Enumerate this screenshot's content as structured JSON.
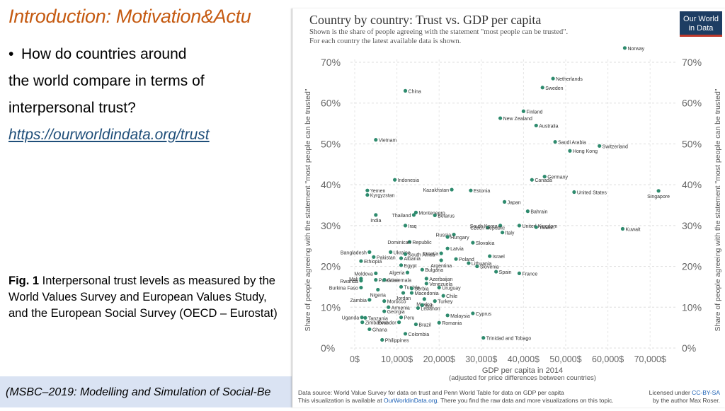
{
  "slide": {
    "title": "Introduction: Motivation&Actu",
    "bullet_line1": "How do countries around",
    "bullet_line2": "the world compare in terms of",
    "bullet_line3": "interpersonal trust?",
    "link": "https://ourworldindata.org/trust",
    "caption_label": "Fig. 1",
    "caption_text": " Interpersonal trust levels as measured by the World Values Survey and European Values Study, and the European Social Survey (OECD – Eurostat)",
    "footer": "(MSBC–2019: Modelling and Simulation of Social-Be"
  },
  "chart_data": {
    "type": "scatter",
    "title": "Country by country: Trust vs. GDP per capita",
    "subtitle_line1": "Shown is the share of people agreeing with the statement \"most people can be trusted\".",
    "subtitle_line2": "For each country the latest available data is shown.",
    "logo_line1": "Our World",
    "logo_line2": "in Data",
    "ylabel": "Share of people agreeing with the statement \"most people can be trusted\"",
    "xlabel": "GDP per capita in 2014",
    "xlabel_sub": "(adjusted for price differences between countries)",
    "xlim": [
      0,
      75000
    ],
    "ylim": [
      0,
      70
    ],
    "x_ticks": [
      "0$",
      "10,000$",
      "20,000$",
      "30,000$",
      "40,000$",
      "50,000$",
      "60,000$",
      "70,000$"
    ],
    "y_ticks": [
      "0%",
      "10%",
      "20%",
      "30%",
      "40%",
      "50%",
      "60%",
      "70%"
    ],
    "source_line1": "Data source: World Value Survey for data on trust and Penn World Table for data on GDP per capita",
    "source_line2_pre": "This visualization is available at ",
    "source_line2_link": "OurWorldinData.org",
    "source_line2_post": ". There you find the raw data and more visualizations on this topic.",
    "license_line1_pre": "Licensed under ",
    "license_line1_link": "CC-BY-SA",
    "license_line2": "by the author Max Roser.",
    "point_color": "#2e8b6e",
    "points": [
      {
        "label": "Norway",
        "x": 64000,
        "y": 73.5,
        "anchor": "start"
      },
      {
        "label": "Netherlands",
        "x": 47000,
        "y": 66,
        "anchor": "start"
      },
      {
        "label": "Sweden",
        "x": 44500,
        "y": 63.8,
        "anchor": "start"
      },
      {
        "label": "China",
        "x": 12000,
        "y": 63,
        "anchor": "start"
      },
      {
        "label": "Finland",
        "x": 40000,
        "y": 58,
        "anchor": "start"
      },
      {
        "label": "New Zealand",
        "x": 34500,
        "y": 56.3,
        "anchor": "start"
      },
      {
        "label": "Australia",
        "x": 43000,
        "y": 54.5,
        "anchor": "start"
      },
      {
        "label": "Vietnam",
        "x": 5000,
        "y": 51,
        "anchor": "start"
      },
      {
        "label": "Saudi Arabia",
        "x": 47500,
        "y": 50.5,
        "anchor": "start"
      },
      {
        "label": "Switzerland",
        "x": 58000,
        "y": 49.5,
        "anchor": "start"
      },
      {
        "label": "Hong Kong",
        "x": 51000,
        "y": 48.3,
        "anchor": "start"
      },
      {
        "label": "Germany",
        "x": 45000,
        "y": 42,
        "anchor": "start"
      },
      {
        "label": "Canada",
        "x": 42000,
        "y": 41.2,
        "anchor": "start"
      },
      {
        "label": "Indonesia",
        "x": 9500,
        "y": 41.2,
        "anchor": "start"
      },
      {
        "label": "Kazakhstan",
        "x": 23000,
        "y": 38.8,
        "anchor": "end"
      },
      {
        "label": "Estonia",
        "x": 27500,
        "y": 38.6,
        "anchor": "start"
      },
      {
        "label": "United States",
        "x": 52000,
        "y": 38.2,
        "anchor": "start"
      },
      {
        "label": "Singapore",
        "x": 72000,
        "y": 38.5,
        "anchor": "middle",
        "dy": 10
      },
      {
        "label": "Yemen",
        "x": 3000,
        "y": 38.6,
        "anchor": "start"
      },
      {
        "label": "Kyrgyzstan",
        "x": 3000,
        "y": 37.5,
        "anchor": "start"
      },
      {
        "label": "Japan",
        "x": 35500,
        "y": 35.8,
        "anchor": "start"
      },
      {
        "label": "Bahrain",
        "x": 41000,
        "y": 33.5,
        "anchor": "start"
      },
      {
        "label": "Montenegro",
        "x": 14500,
        "y": 33.2,
        "anchor": "start"
      },
      {
        "label": "Thailand",
        "x": 14000,
        "y": 32.6,
        "anchor": "end"
      },
      {
        "label": "Belarus",
        "x": 19000,
        "y": 32.5,
        "anchor": "start"
      },
      {
        "label": "India",
        "x": 5000,
        "y": 32.6,
        "anchor": "middle",
        "dy": 10
      },
      {
        "label": "South Korea",
        "x": 34500,
        "y": 30,
        "anchor": "end"
      },
      {
        "label": "Iraq",
        "x": 12000,
        "y": 30,
        "anchor": "start"
      },
      {
        "label": "Czech Republic",
        "x": 31500,
        "y": 29.5,
        "anchor": "middle"
      },
      {
        "label": "United Kingdom",
        "x": 39000,
        "y": 30,
        "anchor": "start"
      },
      {
        "label": "Taiwan",
        "x": 43000,
        "y": 29.6,
        "anchor": "start"
      },
      {
        "label": "Kuwait",
        "x": 63500,
        "y": 29.2,
        "anchor": "start"
      },
      {
        "label": "Italy",
        "x": 35000,
        "y": 28.3,
        "anchor": "start"
      },
      {
        "label": "Russia",
        "x": 23500,
        "y": 27.8,
        "anchor": "end"
      },
      {
        "label": "Hungary",
        "x": 22000,
        "y": 27.2,
        "anchor": "start"
      },
      {
        "label": "Dominican Republic",
        "x": 13000,
        "y": 26,
        "anchor": "middle"
      },
      {
        "label": "Slovakia",
        "x": 28000,
        "y": 25.8,
        "anchor": "start"
      },
      {
        "label": "Latvia",
        "x": 22000,
        "y": 24.4,
        "anchor": "start"
      },
      {
        "label": "Ukraine",
        "x": 8500,
        "y": 23.5,
        "anchor": "start"
      },
      {
        "label": "Bangladesh",
        "x": 3500,
        "y": 23.5,
        "anchor": "end"
      },
      {
        "label": "South Africa",
        "x": 12000,
        "y": 23,
        "anchor": "start"
      },
      {
        "label": "Croatia",
        "x": 20500,
        "y": 23.2,
        "anchor": "end"
      },
      {
        "label": "Israel",
        "x": 32000,
        "y": 22.5,
        "anchor": "start"
      },
      {
        "label": "Pakistan",
        "x": 4500,
        "y": 22.3,
        "anchor": "start"
      },
      {
        "label": "Albania",
        "x": 11000,
        "y": 22,
        "anchor": "start"
      },
      {
        "label": "Poland",
        "x": 24000,
        "y": 21.8,
        "anchor": "start"
      },
      {
        "label": "Ethiopia",
        "x": 1500,
        "y": 21.3,
        "anchor": "start"
      },
      {
        "label": "Argentina",
        "x": 20500,
        "y": 21.5,
        "anchor": "middle",
        "dy": 10
      },
      {
        "label": "Lithuania",
        "x": 27000,
        "y": 20.8,
        "anchor": "start"
      },
      {
        "label": "Egypt",
        "x": 11000,
        "y": 20.3,
        "anchor": "start"
      },
      {
        "label": "Slovenia",
        "x": 29000,
        "y": 20,
        "anchor": "start"
      },
      {
        "label": "Bulgaria",
        "x": 16000,
        "y": 19.2,
        "anchor": "start"
      },
      {
        "label": "Algeria",
        "x": 12500,
        "y": 18.5,
        "anchor": "end"
      },
      {
        "label": "Spain",
        "x": 33500,
        "y": 18.7,
        "anchor": "start"
      },
      {
        "label": "France",
        "x": 39000,
        "y": 18.3,
        "anchor": "start"
      },
      {
        "label": "Moldova",
        "x": 5000,
        "y": 18.3,
        "anchor": "end"
      },
      {
        "label": "Mali",
        "x": 1500,
        "y": 17,
        "anchor": "end"
      },
      {
        "label": "Rwanda",
        "x": 1500,
        "y": 16.5,
        "anchor": "end"
      },
      {
        "label": "Palestine",
        "x": 5000,
        "y": 16.7,
        "anchor": "start"
      },
      {
        "label": "Guatemala",
        "x": 7000,
        "y": 16.7,
        "anchor": "start"
      },
      {
        "label": "Azerbaijan",
        "x": 17000,
        "y": 17,
        "anchor": "start"
      },
      {
        "label": "Venezuela",
        "x": 17000,
        "y": 15.8,
        "anchor": "start"
      },
      {
        "label": "Burkina Faso",
        "x": 1500,
        "y": 14.8,
        "anchor": "end"
      },
      {
        "label": "Nigeria",
        "x": 5500,
        "y": 14.3,
        "anchor": "middle",
        "dy": 10
      },
      {
        "label": "Tunisia",
        "x": 11000,
        "y": 15,
        "anchor": "start"
      },
      {
        "label": "Serbia",
        "x": 13500,
        "y": 14.6,
        "anchor": "start"
      },
      {
        "label": "Uruguay",
        "x": 20000,
        "y": 14.8,
        "anchor": "start"
      },
      {
        "label": "Jordan",
        "x": 11500,
        "y": 13.5,
        "anchor": "middle",
        "dy": 10
      },
      {
        "label": "Macedonia",
        "x": 13500,
        "y": 13.5,
        "anchor": "start"
      },
      {
        "label": "Chile",
        "x": 21000,
        "y": 12.8,
        "anchor": "start"
      },
      {
        "label": "Zambia",
        "x": 3500,
        "y": 11.8,
        "anchor": "end"
      },
      {
        "label": "Morocco",
        "x": 7000,
        "y": 11.5,
        "anchor": "start"
      },
      {
        "label": "Mexico",
        "x": 16500,
        "y": 12,
        "anchor": "middle",
        "dy": 10
      },
      {
        "label": "Turkey",
        "x": 19000,
        "y": 11.5,
        "anchor": "start"
      },
      {
        "label": "Iran",
        "x": 16000,
        "y": 10.5,
        "anchor": "start"
      },
      {
        "label": "Armenia",
        "x": 8000,
        "y": 10,
        "anchor": "start"
      },
      {
        "label": "Lebanon",
        "x": 15000,
        "y": 9.8,
        "anchor": "start"
      },
      {
        "label": "Georgia",
        "x": 7000,
        "y": 9,
        "anchor": "start"
      },
      {
        "label": "Cyprus",
        "x": 28000,
        "y": 8.5,
        "anchor": "start"
      },
      {
        "label": "Malaysia",
        "x": 22000,
        "y": 8,
        "anchor": "start"
      },
      {
        "label": "Peru",
        "x": 11000,
        "y": 7.5,
        "anchor": "start"
      },
      {
        "label": "Uganda",
        "x": 1700,
        "y": 7.5,
        "anchor": "end"
      },
      {
        "label": "Tanzania",
        "x": 2500,
        "y": 7.4,
        "anchor": "start"
      },
      {
        "label": "Romania",
        "x": 20000,
        "y": 6.2,
        "anchor": "start"
      },
      {
        "label": "Zimbabwe",
        "x": 1800,
        "y": 6.3,
        "anchor": "start"
      },
      {
        "label": "Ecuador",
        "x": 10500,
        "y": 6.3,
        "anchor": "end"
      },
      {
        "label": "Brazil",
        "x": 14500,
        "y": 5.8,
        "anchor": "start"
      },
      {
        "label": "Ghana",
        "x": 3500,
        "y": 4.6,
        "anchor": "start"
      },
      {
        "label": "Colombia",
        "x": 12000,
        "y": 3.5,
        "anchor": "start"
      },
      {
        "label": "Trinidad and Tobago",
        "x": 30500,
        "y": 2.5,
        "anchor": "start"
      },
      {
        "label": "Philippines",
        "x": 6500,
        "y": 2,
        "anchor": "start"
      }
    ]
  }
}
